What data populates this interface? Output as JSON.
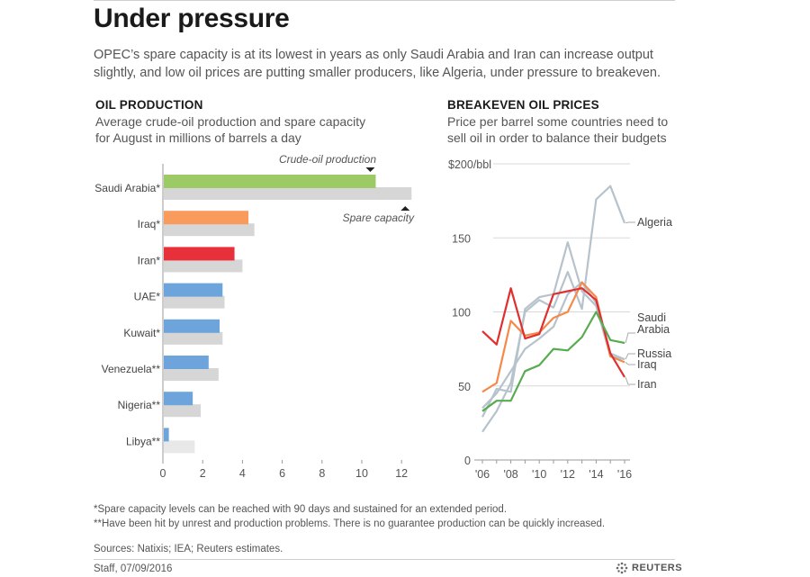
{
  "title": "Under pressure",
  "intro": "OPEC’s spare capacity is at its lowest in years as only Saudi Arabia and Iran can increase output slightly, and low oil prices are putting smaller producers, like Algeria, under pressure to breakeven.",
  "chart_data": [
    {
      "type": "bar",
      "title": "OIL PRODUCTION",
      "subtitle_line1": "Average crude-oil production and spare capacity",
      "subtitle_line2": "for August in millions of barrels a day",
      "categories": [
        "Saudi Arabia*",
        "Iraq*",
        "Iran*",
        "UAE*",
        "Kuwait*",
        "Venezuela**",
        "Nigeria**",
        "Libya**"
      ],
      "series": [
        {
          "name": "Crude-oil production",
          "values": [
            10.7,
            4.3,
            3.6,
            3.0,
            2.85,
            2.3,
            1.5,
            0.3
          ],
          "color_key": "colors"
        },
        {
          "name": "Spare capacity",
          "values": [
            12.5,
            4.6,
            4.0,
            3.1,
            3.0,
            2.8,
            1.9,
            1.6
          ],
          "color": "#d6d6d6"
        }
      ],
      "colors": [
        "#9ccb66",
        "#f89b5d",
        "#e8303a",
        "#6ea4dc",
        "#6ea4dc",
        "#6ea4dc",
        "#6ea4dc",
        "#6ea4dc"
      ],
      "xlim": [
        0,
        13.5
      ],
      "xticks": [
        0,
        2,
        4,
        6,
        8,
        10,
        12
      ],
      "xtick_labels": [
        "0",
        "2",
        "4",
        "6",
        "8",
        "10",
        "12"
      ],
      "annotation_production": "Crude-oil production",
      "annotation_spare": "Spare capacity"
    },
    {
      "type": "line",
      "title": "BREAKEVEN OIL PRICES",
      "subtitle_line1": "Price per barrel some countries need to",
      "subtitle_line2": "sell oil in order to balance their budgets",
      "x": [
        2006,
        2007,
        2008,
        2009,
        2010,
        2011,
        2012,
        2013,
        2014,
        2015,
        2016
      ],
      "xlim": [
        2005.6,
        2016.5
      ],
      "ylim": [
        0,
        200
      ],
      "yticks": [
        0,
        50,
        100,
        150,
        200
      ],
      "ytick_labels": [
        "0",
        "50",
        "100",
        "150",
        "$200/bbl"
      ],
      "xticks": [
        2006,
        2008,
        2010,
        2012,
        2014,
        2016
      ],
      "xtick_labels": [
        "'06",
        "'08",
        "'10",
        "'12",
        "'14",
        "'16"
      ],
      "series": [
        {
          "name": "Algeria",
          "color": "#b6c3cc",
          "values": [
            19,
            33,
            52,
            100,
            108,
            103,
            127,
            102,
            176,
            185,
            160
          ]
        },
        {
          "name": "Saudi Arabia",
          "color": "#b6c3cc",
          "values": [
            29,
            48,
            46,
            102,
            110,
            112,
            147,
            114,
            104,
            70,
            68
          ]
        },
        {
          "name": "Russia",
          "color": "#b6c3cc",
          "values": [
            35,
            45,
            60,
            75,
            82,
            90,
            112,
            120,
            106,
            72,
            68
          ]
        },
        {
          "name": "Iraq",
          "color": "#f5894a",
          "values": [
            46,
            52,
            94,
            84,
            86,
            96,
            100,
            120,
            110,
            70,
            66
          ]
        },
        {
          "name": "Iran",
          "color": "#e02f2f",
          "values": [
            87,
            78,
            116,
            82,
            85,
            112,
            114,
            116,
            108,
            72,
            56
          ]
        },
        {
          "name": "Saudi Arabia",
          "color": "#59ab52",
          "values": [
            33,
            40,
            40,
            60,
            64,
            75,
            74,
            83,
            100,
            81,
            79
          ]
        }
      ],
      "end_labels": [
        {
          "series_index": 0,
          "line1": "Algeria",
          "line2": ""
        },
        {
          "series_index": 5,
          "line1": "Saudi",
          "line2": "Arabia"
        },
        {
          "series_index": 2,
          "line1": "Russia",
          "line2": ""
        },
        {
          "series_index": 3,
          "line1": "Iraq",
          "line2": ""
        },
        {
          "series_index": 4,
          "line1": "Iran",
          "line2": ""
        }
      ]
    }
  ],
  "footnote1": "*Spare capacity levels can be reached with 90 days and sustained for an extended period.",
  "footnote2": "**Have been hit by unrest and production problems. There is no guarantee production can be quickly increased.",
  "sources": "Sources: Natixis; IEA; Reuters estimates.",
  "credit": "Staff,  07/09/2016",
  "brand": "REUTERS"
}
